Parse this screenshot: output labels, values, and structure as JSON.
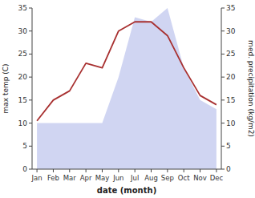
{
  "chart_data": {
    "type": "line",
    "categories": [
      "Jan",
      "Feb",
      "Mar",
      "Apr",
      "May",
      "Jun",
      "Jul",
      "Aug",
      "Sep",
      "Oct",
      "Nov",
      "Dec"
    ],
    "series": [
      {
        "type": "line",
        "color": "#a83030",
        "values": [
          10.5,
          15,
          17,
          23,
          22,
          30,
          32,
          32,
          29,
          22,
          16,
          14
        ]
      },
      {
        "type": "area",
        "color": "#c8cef0",
        "axis": "y2",
        "values": [
          10,
          10,
          10,
          10,
          10,
          20,
          33,
          32,
          35,
          22,
          15,
          13
        ]
      }
    ],
    "xlabel": "date (month)",
    "ylabel": "max temp (C)",
    "y2label": "med. precipitation (kg/m2)",
    "ylim": [
      0,
      35
    ],
    "yticks": [
      0,
      5,
      10,
      15,
      20,
      25,
      30,
      35
    ],
    "y2lim": [
      0,
      35
    ],
    "y2ticks": [
      0,
      5,
      10,
      15,
      20,
      25,
      30,
      35
    ],
    "grid": false
  }
}
